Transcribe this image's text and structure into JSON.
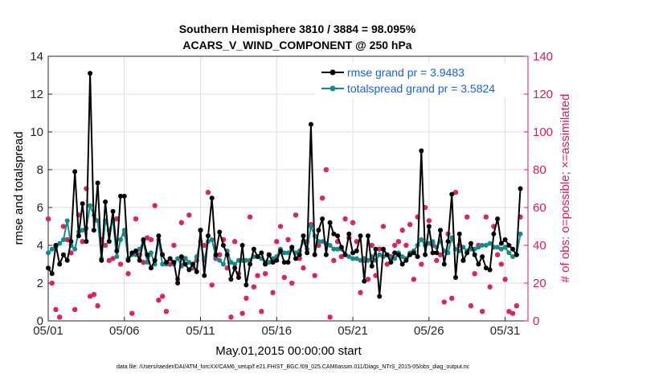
{
  "chart_data": {
    "type": "line",
    "title": "Southern Hemisphere 3810 / 3884 = 98.095%",
    "subtitle": "ACARS_V_WIND_COMPONENT @ 250 hPa",
    "xlabel": "May.01,2015 00:00:00 start",
    "ylabel": "rmse and totalspread",
    "ylabel_right": "# of obs: o=possible; ×=assimilated",
    "footer": "data file: /Users/raeder/DAI/ATM_forcXX/CAM6_setup/f.e21.FHIST_BGC.f09_025.CAM6assim.011/Diags_NTrS_2015-05/obs_diag_output.nc",
    "xlim": [
      0,
      31.5
    ],
    "ylim": [
      0,
      14
    ],
    "ylim_right": [
      0,
      140
    ],
    "x_ticks": [
      0,
      5,
      10,
      15,
      20,
      25,
      30
    ],
    "x_tick_labels": [
      "05/01",
      "05/06",
      "05/11",
      "05/16",
      "05/21",
      "05/26",
      "05/31"
    ],
    "y_ticks": [
      "0",
      "2",
      "4",
      "6",
      "8",
      "10",
      "12",
      "14"
    ],
    "y_ticks_right": [
      "0",
      "20",
      "40",
      "60",
      "80",
      "100",
      "120",
      "140"
    ],
    "grid": true,
    "legend_position": "top-right",
    "colors": {
      "rmse": "#000000",
      "totalspread": "#138b8b",
      "obs": "#d81b5a",
      "right_axis": "#d81b5a",
      "legend_text": "#1f5fd6",
      "grid": "#dedede"
    },
    "series": [
      {
        "name": "rmse grand pr = 3.9483",
        "values": [
          2.8,
          2.5,
          4.0,
          3.0,
          3.5,
          3.2,
          4.2,
          7.9,
          4.5,
          6.2,
          4.2,
          13.1,
          4.8,
          7.3,
          3.2,
          6.3,
          4.2,
          5.8,
          3.7,
          6.6,
          6.6,
          3.2,
          3.6,
          3.7,
          3.2,
          4.3,
          3.5,
          2.8,
          3.2,
          4.5,
          3.5,
          3.1,
          3.3,
          3.1,
          2.0,
          3.4,
          3.0,
          2.7,
          3.0,
          2.6,
          4.8,
          2.4,
          4.5,
          6.5,
          3.5,
          4.7,
          4.0,
          3.5,
          2.2,
          2.8,
          2.3,
          4.0,
          1.9,
          3.0,
          3.8,
          3.4,
          3.6,
          3.0,
          3.5,
          3.1,
          3.2,
          3.7,
          3.1,
          3.1,
          3.9,
          3.3,
          3.5,
          4.5,
          3.6,
          10.4,
          3.5,
          4.8,
          5.4,
          3.5,
          5.2,
          4.6,
          4.5,
          3.9,
          3.5,
          4.6,
          3.6,
          3.7,
          4.5,
          2.1,
          4.5,
          2.9,
          3.8,
          1.3,
          3.8,
          3.5,
          3.1,
          3.6,
          3.5,
          3.0,
          3.2,
          3.5,
          3.6,
          3.4,
          9.0,
          3.5,
          5.0,
          3.6,
          3.6,
          4.8,
          3.0,
          4.2,
          6.7,
          2.3,
          4.6,
          3.2,
          3.6,
          4.1,
          3.5,
          3.0,
          3.4,
          2.8,
          2.7,
          4.6,
          5.4,
          4.1,
          4.3,
          4.0,
          3.8,
          3.5,
          7.0
        ],
        "color": "#000000"
      },
      {
        "name": "totalspread grand pr = 3.5824",
        "values": [
          3.6,
          3.8,
          3.9,
          4.1,
          4.3,
          5.3,
          4.0,
          3.8,
          4.7,
          4.8,
          4.9,
          6.1,
          5.6,
          5.3,
          3.3,
          5.3,
          4.8,
          5.3,
          3.4,
          4.3,
          4.8,
          3.3,
          3.5,
          3.5,
          3.8,
          4.2,
          3.1,
          3.6,
          3.0,
          4.3,
          3.0,
          3.0,
          3.3,
          3.0,
          3.3,
          2.9,
          3.3,
          3.1,
          2.9,
          3.4,
          4.2,
          3.2,
          4.2,
          4.3,
          3.4,
          3.2,
          3.0,
          3.7,
          3.1,
          3.0,
          3.2,
          3.2,
          3.2,
          3.2,
          3.4,
          3.4,
          3.3,
          3.1,
          3.1,
          3.3,
          3.4,
          3.8,
          3.6,
          3.6,
          3.8,
          3.6,
          3.7,
          4.2,
          3.8,
          5.0,
          4.5,
          4.2,
          4.2,
          4.1,
          4.0,
          3.8,
          3.8,
          3.8,
          3.5,
          3.4,
          3.3,
          3.3,
          3.2,
          3.3,
          3.2,
          3.4,
          3.2,
          3.5,
          3.4,
          3.5,
          3.3,
          3.3,
          3.6,
          3.4,
          3.3,
          3.6,
          3.7,
          4.0,
          4.3,
          4.0,
          4.1,
          4.2,
          3.9,
          4.2,
          3.7,
          3.6,
          4.4,
          3.8,
          3.7,
          3.9,
          3.7,
          3.8,
          3.8,
          3.9,
          4.0,
          4.0,
          4.1,
          3.9,
          3.9,
          3.8,
          3.9,
          3.6,
          3.4,
          3.5,
          4.6
        ],
        "color": "#138b8b"
      }
    ],
    "obs_counts": [
      54,
      20,
      6,
      2,
      50,
      43,
      36,
      6,
      56,
      42,
      70,
      13,
      14,
      8,
      43,
      40,
      32,
      33,
      54,
      30,
      46,
      25,
      4,
      54,
      35,
      31,
      44,
      43,
      61,
      11,
      13,
      5,
      30,
      40,
      22,
      52,
      33,
      56,
      28,
      32,
      48,
      40,
      68,
      19,
      33,
      35,
      43,
      28,
      2,
      42,
      25,
      4,
      12,
      55,
      18,
      24,
      5,
      25,
      35,
      15,
      42,
      50,
      23,
      43,
      20,
      56,
      33,
      28,
      42,
      51,
      24,
      40,
      65,
      80,
      2,
      32,
      42,
      34,
      54,
      44,
      52,
      42,
      15,
      32,
      22,
      40,
      24,
      38,
      50,
      30,
      34,
      40,
      42,
      48,
      40,
      51,
      22,
      55,
      30,
      60,
      53,
      40,
      32,
      35,
      10,
      46,
      12,
      68,
      40,
      32,
      55,
      8,
      25,
      40,
      5,
      55,
      18,
      50,
      35,
      30,
      22,
      5,
      4,
      8,
      55
    ],
    "obs_assimilated": [
      54,
      20,
      6,
      2,
      50,
      43,
      36,
      6,
      56,
      42,
      70,
      13,
      14,
      8,
      43,
      40,
      32,
      33,
      54,
      30,
      46,
      25,
      4,
      54,
      35,
      31,
      44,
      43,
      61,
      11,
      13,
      5,
      30,
      40,
      22,
      52,
      33,
      56,
      28,
      32,
      48,
      40,
      68,
      19,
      33,
      35,
      43,
      28,
      2,
      42,
      25,
      4,
      12,
      55,
      18,
      24,
      5,
      25,
      35,
      15,
      42,
      50,
      23,
      43,
      20,
      56,
      33,
      28,
      42,
      51,
      24,
      40,
      65,
      80,
      2,
      32,
      42,
      34,
      54,
      44,
      52,
      42,
      15,
      32,
      22,
      40,
      24,
      38,
      50,
      30,
      34,
      40,
      42,
      48,
      40,
      51,
      22,
      55,
      30,
      60,
      53,
      40,
      32,
      35,
      10,
      46,
      12,
      68,
      40,
      32,
      55,
      8,
      25,
      40,
      5,
      55,
      18,
      50,
      35,
      30,
      22,
      5,
      4,
      8,
      55
    ]
  }
}
